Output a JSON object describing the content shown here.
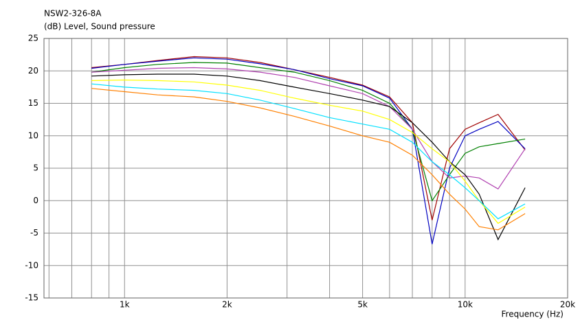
{
  "chart_data": {
    "type": "line",
    "title": "NSW2-326-8A",
    "y_label": "(dB)  Level, Sound pressure",
    "x_label": "Frequency  (Hz)",
    "log_x": true,
    "grid": true,
    "x": [
      800,
      1000,
      1250,
      1600,
      2000,
      2500,
      3150,
      4000,
      5000,
      6000,
      7000,
      8000,
      9000,
      10000,
      11000,
      12500,
      15000
    ],
    "series": [
      {
        "color": "#a00000",
        "values": [
          20.5,
          21,
          21.6,
          22.2,
          22,
          21.3,
          20.2,
          19,
          17.8,
          16,
          12,
          -3,
          8,
          11,
          12,
          13.3,
          7.8
        ]
      },
      {
        "color": "#0000c0",
        "values": [
          20.4,
          21,
          21.5,
          22,
          21.8,
          21.1,
          20.2,
          18.8,
          17.7,
          15.8,
          11,
          -6.7,
          5,
          10,
          11,
          12.2,
          8
        ]
      },
      {
        "color": "#008000",
        "values": [
          19.8,
          20.5,
          21,
          21.3,
          21.2,
          20.5,
          19.8,
          18.5,
          17,
          15,
          11,
          0,
          4,
          7.3,
          8.3,
          8.8,
          9.5
        ]
      },
      {
        "color": "#b040b0",
        "values": [
          19.8,
          20.1,
          20.4,
          20.5,
          20.3,
          19.8,
          19,
          17.7,
          16.5,
          14.5,
          11,
          6,
          3.5,
          3.8,
          3.5,
          1.8,
          8
        ]
      },
      {
        "color": "#000000",
        "values": [
          19.2,
          19.4,
          19.5,
          19.5,
          19.2,
          18.5,
          17.5,
          16.5,
          15.5,
          14.5,
          12,
          9,
          6,
          4,
          1,
          -6,
          2
        ]
      },
      {
        "color": "#ffff00",
        "values": [
          18.5,
          18.6,
          18.5,
          18.3,
          17.8,
          17,
          15.8,
          14.7,
          13.8,
          12.5,
          10.5,
          8,
          6,
          3,
          0,
          -3.5,
          -1
        ]
      },
      {
        "color": "#00e0ff",
        "values": [
          18,
          17.5,
          17.2,
          17,
          16.5,
          15.5,
          14.2,
          12.8,
          11.8,
          11,
          9,
          6,
          4,
          2,
          0,
          -2.8,
          -0.5
        ]
      },
      {
        "color": "#ff8000",
        "values": [
          17.3,
          16.8,
          16.3,
          16,
          15.3,
          14.3,
          13,
          11.5,
          10,
          9,
          7,
          4,
          1,
          -1.3,
          -4,
          -4.5,
          -2
        ]
      }
    ],
    "xlim": [
      580,
      20000
    ],
    "xticks": [
      {
        "value": 1000,
        "label": "1k"
      },
      {
        "value": 2000,
        "label": "2k"
      },
      {
        "value": 5000,
        "label": "5k"
      },
      {
        "value": 10000,
        "label": "10k"
      },
      {
        "value": 20000,
        "label": "20k"
      }
    ],
    "x_minor_ticks": [
      600,
      700,
      800,
      900,
      3000,
      4000,
      6000,
      7000,
      8000,
      9000
    ],
    "ylim": [
      -15,
      25
    ],
    "yticks": [
      -15,
      -10,
      -5,
      0,
      5,
      10,
      15,
      20,
      25
    ]
  }
}
